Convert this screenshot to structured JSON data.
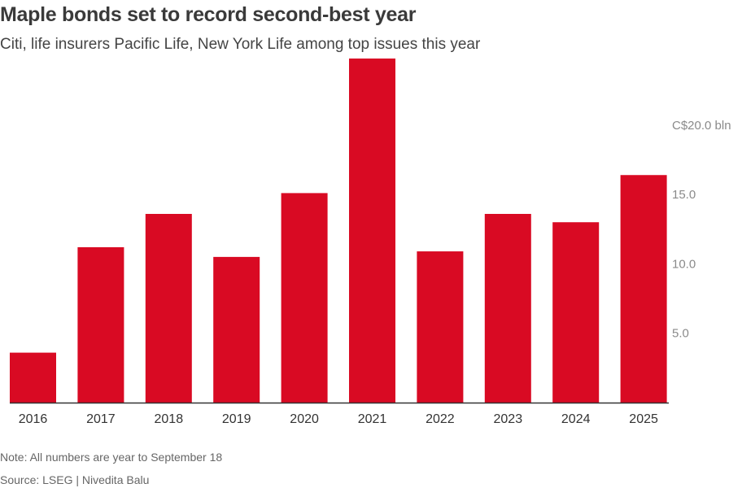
{
  "header": {
    "title": "Maple bonds set to record second-best year",
    "subtitle": "Citi, life insurers Pacific Life, New York Life among top issues this year"
  },
  "footer": {
    "note": "Note: All numbers are year to September 18",
    "source": "Source: LSEG  | Nivedita Balu"
  },
  "colors": {
    "bar": "#d90a23",
    "axis": "#333333",
    "y_tick_text": "#8a8a8a"
  },
  "chart_data": {
    "type": "bar",
    "categories": [
      "2016",
      "2017",
      "2018",
      "2019",
      "2020",
      "2021",
      "2022",
      "2023",
      "2024",
      "2025"
    ],
    "values": [
      3.6,
      11.2,
      13.6,
      10.5,
      15.1,
      24.8,
      10.9,
      13.6,
      13.0,
      16.4
    ],
    "ylim": [
      0,
      25.5
    ],
    "y_ticks": [
      5,
      10,
      15,
      20
    ],
    "y_tick_labels": [
      "5.0",
      "10.0",
      "15.0",
      "C$20.0 bln"
    ],
    "y_axis_side": "right",
    "grid": false,
    "xlabel": "",
    "ylabel": ""
  }
}
